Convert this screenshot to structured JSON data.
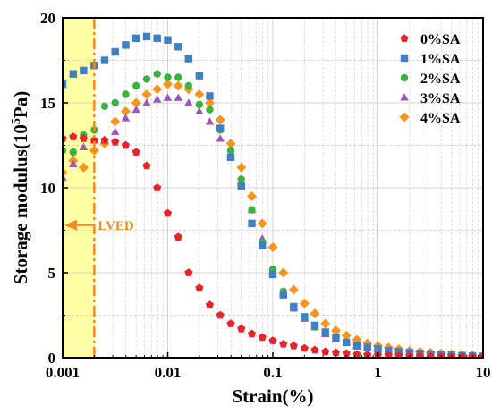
{
  "chart_data": {
    "type": "scatter",
    "xscale": "log",
    "xlim": [
      0.001,
      10
    ],
    "ylim": [
      0,
      20
    ],
    "xlabel": "Strain(%)",
    "ylabel_main": "Storage modulus(10",
    "ylabel_exp": "5",
    "ylabel_tail": "Pa)",
    "x_ticks": [
      0.001,
      0.01,
      0.1,
      1,
      10
    ],
    "x_tick_labels": [
      "0.001",
      "0.01",
      "0.1",
      "1",
      "10"
    ],
    "y_ticks": [
      0,
      5,
      10,
      15,
      20
    ],
    "y_tick_labels": [
      "0",
      "5",
      "10",
      "15",
      "20"
    ],
    "grid": true,
    "legend_position": "top-right",
    "annotation": {
      "label": "LVED",
      "x_limit": 0.002,
      "region_color": "#ffff99",
      "line_color": "#f08c1e"
    },
    "series": [
      {
        "name": "0%SA",
        "marker": "pentagon",
        "color": "#e8232a",
        "x": [
          0.001,
          0.00126,
          0.00158,
          0.002,
          0.00251,
          0.00316,
          0.00398,
          0.00501,
          0.00631,
          0.00794,
          0.01,
          0.0126,
          0.0158,
          0.02,
          0.0251,
          0.0316,
          0.0398,
          0.0501,
          0.0631,
          0.0794,
          0.1,
          0.126,
          0.158,
          0.2,
          0.251,
          0.316,
          0.398,
          0.501,
          0.631,
          0.794,
          1,
          1.26,
          1.58,
          2,
          2.51,
          3.16,
          3.98,
          5.01,
          6.31,
          7.94,
          10
        ],
        "y": [
          12.9,
          13.0,
          12.9,
          12.8,
          12.8,
          12.7,
          12.5,
          12.1,
          11.3,
          10.0,
          8.5,
          7.1,
          5.0,
          4.1,
          3.1,
          2.5,
          2.0,
          1.7,
          1.4,
          1.2,
          1.0,
          0.8,
          0.7,
          0.55,
          0.45,
          0.35,
          0.3,
          0.25,
          0.2,
          0.17,
          0.15,
          0.13,
          0.11,
          0.1,
          0.09,
          0.08,
          0.07,
          0.06,
          0.05,
          0.05,
          0.04
        ]
      },
      {
        "name": "1%SA",
        "marker": "square",
        "color": "#3f7fc4",
        "x": [
          0.001,
          0.00126,
          0.00158,
          0.002,
          0.00251,
          0.00316,
          0.00398,
          0.00501,
          0.00631,
          0.00794,
          0.01,
          0.0126,
          0.0158,
          0.02,
          0.0251,
          0.0316,
          0.0398,
          0.0501,
          0.0631,
          0.0794,
          0.1,
          0.126,
          0.158,
          0.2,
          0.251,
          0.316,
          0.398,
          0.501,
          0.631,
          0.794,
          1,
          1.26,
          1.58,
          2,
          2.51,
          3.16,
          3.98,
          5.01,
          6.31,
          7.94,
          10
        ],
        "y": [
          16.1,
          16.7,
          16.9,
          17.2,
          17.5,
          18.0,
          18.4,
          18.8,
          18.9,
          18.8,
          18.7,
          18.3,
          17.6,
          16.6,
          15.4,
          13.5,
          11.8,
          10.1,
          7.9,
          6.6,
          4.9,
          3.7,
          3.0,
          2.4,
          1.9,
          1.5,
          1.2,
          0.9,
          0.7,
          0.6,
          0.5,
          0.4,
          0.35,
          0.3,
          0.25,
          0.2,
          0.17,
          0.15,
          0.12,
          0.1,
          0.08
        ]
      },
      {
        "name": "2%SA",
        "marker": "circle",
        "color": "#3cb043",
        "x": [
          0.001,
          0.00126,
          0.00158,
          0.002,
          0.00251,
          0.00316,
          0.00398,
          0.00501,
          0.00631,
          0.00794,
          0.01,
          0.0126,
          0.0158,
          0.02,
          0.0251,
          0.0316,
          0.0398,
          0.0501,
          0.0631,
          0.0794,
          0.1,
          0.126,
          0.158,
          0.2,
          0.251,
          0.316,
          0.398,
          0.501,
          0.631,
          0.794,
          1,
          1.26,
          1.58,
          2,
          2.51,
          3.16,
          3.98,
          5.01,
          6.31,
          7.94,
          10
        ],
        "y": [
          12.2,
          12.1,
          13.1,
          13.4,
          14.8,
          15.0,
          15.5,
          16.0,
          16.4,
          16.7,
          16.5,
          16.5,
          16.0,
          14.9,
          14.6,
          13.4,
          12.2,
          10.5,
          8.7,
          6.8,
          5.2,
          3.9,
          3.0,
          2.4,
          1.8,
          1.5,
          1.2,
          0.9,
          0.75,
          0.6,
          0.5,
          0.4,
          0.35,
          0.3,
          0.25,
          0.2,
          0.17,
          0.15,
          0.12,
          0.1,
          0.08
        ]
      },
      {
        "name": "3%SA",
        "marker": "triangle",
        "color": "#9b59b6",
        "x": [
          0.001,
          0.00126,
          0.00158,
          0.002,
          0.00251,
          0.00316,
          0.00398,
          0.00501,
          0.00631,
          0.00794,
          0.01,
          0.0126,
          0.0158,
          0.02,
          0.0251,
          0.0316,
          0.0398,
          0.0501,
          0.0631,
          0.0794,
          0.1,
          0.126,
          0.158,
          0.2,
          0.251,
          0.316,
          0.398,
          0.501,
          0.631,
          0.794,
          1,
          1.26,
          1.58,
          2,
          2.51,
          3.16,
          3.98,
          5.01,
          6.31,
          7.94,
          10
        ],
        "y": [
          10.6,
          11.4,
          12.4,
          12.8,
          12.8,
          13.3,
          14.1,
          14.6,
          15.0,
          15.2,
          15.3,
          15.3,
          15.0,
          14.5,
          13.9,
          12.9,
          11.8,
          10.3,
          8.7,
          7.0,
          5.0,
          3.8,
          2.9,
          2.3,
          1.8,
          1.4,
          1.1,
          0.9,
          0.7,
          0.6,
          0.5,
          0.4,
          0.35,
          0.3,
          0.25,
          0.2,
          0.17,
          0.14,
          0.12,
          0.1,
          0.08
        ]
      },
      {
        "name": "4%SA",
        "marker": "diamond",
        "color": "#f7941d",
        "x": [
          0.001,
          0.00126,
          0.00158,
          0.002,
          0.00251,
          0.00316,
          0.00398,
          0.00501,
          0.00631,
          0.00794,
          0.01,
          0.0126,
          0.0158,
          0.02,
          0.0251,
          0.0316,
          0.0398,
          0.0501,
          0.0631,
          0.0794,
          0.1,
          0.126,
          0.158,
          0.2,
          0.251,
          0.316,
          0.398,
          0.501,
          0.631,
          0.794,
          1,
          1.26,
          1.58,
          2,
          2.51,
          3.16,
          3.98,
          5.01,
          6.31,
          7.94,
          10
        ],
        "y": [
          10.9,
          11.6,
          11.2,
          12.2,
          12.6,
          13.9,
          14.5,
          15.0,
          15.5,
          15.8,
          16.1,
          16.0,
          15.8,
          15.5,
          15.0,
          14.0,
          12.6,
          11.2,
          9.5,
          7.9,
          6.5,
          5.0,
          4.0,
          3.2,
          2.6,
          2.0,
          1.6,
          1.3,
          1.05,
          0.85,
          0.7,
          0.6,
          0.5,
          0.4,
          0.35,
          0.3,
          0.25,
          0.2,
          0.17,
          0.14,
          0.12
        ]
      }
    ]
  }
}
